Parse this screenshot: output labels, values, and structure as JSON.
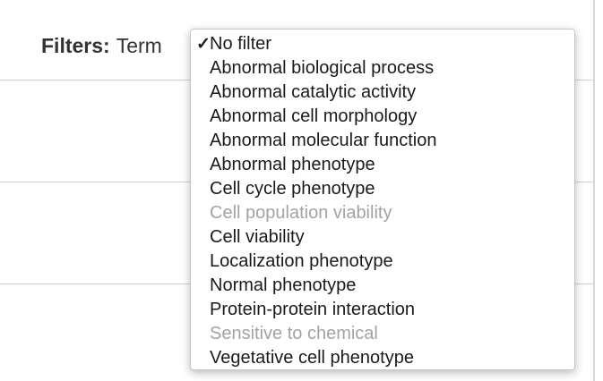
{
  "filters": {
    "label": "Filters:",
    "field": "Term"
  },
  "dropdown": {
    "checkmark": "✓",
    "options": [
      {
        "label": "No filter",
        "selected": true,
        "disabled": false
      },
      {
        "label": "Abnormal biological process",
        "selected": false,
        "disabled": false
      },
      {
        "label": "Abnormal catalytic activity",
        "selected": false,
        "disabled": false
      },
      {
        "label": "Abnormal cell morphology",
        "selected": false,
        "disabled": false
      },
      {
        "label": "Abnormal molecular function",
        "selected": false,
        "disabled": false
      },
      {
        "label": "Abnormal phenotype",
        "selected": false,
        "disabled": false
      },
      {
        "label": "Cell cycle phenotype",
        "selected": false,
        "disabled": false
      },
      {
        "label": "Cell population viability",
        "selected": false,
        "disabled": true
      },
      {
        "label": "Cell viability",
        "selected": false,
        "disabled": false
      },
      {
        "label": "Localization phenotype",
        "selected": false,
        "disabled": false
      },
      {
        "label": "Normal phenotype",
        "selected": false,
        "disabled": false
      },
      {
        "label": "Protein-protein interaction",
        "selected": false,
        "disabled": false
      },
      {
        "label": "Sensitive to chemical",
        "selected": false,
        "disabled": true
      },
      {
        "label": "Vegetative cell phenotype",
        "selected": false,
        "disabled": false
      }
    ]
  },
  "colors": {
    "text": "#1a1a1a",
    "disabled_text": "#a3a3a3",
    "label_text": "#333333"
  }
}
